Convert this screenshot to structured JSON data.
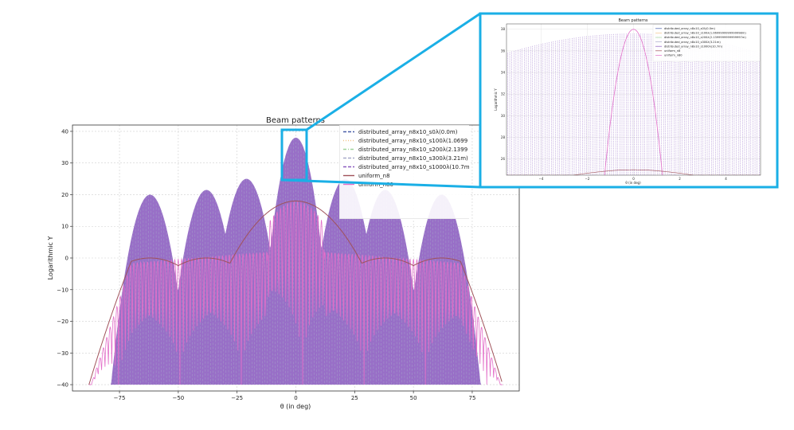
{
  "chart_data": [
    {
      "type": "line",
      "title": "Beam patterns",
      "xlabel": "θ (in deg)",
      "ylabel": "Logarithmic Y",
      "xlim": [
        -95,
        95
      ],
      "ylim": [
        -42,
        42
      ],
      "xticks": [
        -75,
        -50,
        -25,
        0,
        25,
        50,
        75
      ],
      "yticks": [
        -40,
        -30,
        -20,
        -10,
        0,
        10,
        20,
        30,
        40
      ],
      "grid": true,
      "legend_position": "top-right",
      "envelope_peaks": [
        {
          "x": -62,
          "y": 20
        },
        {
          "x": -38,
          "y": 21.5
        },
        {
          "x": -21,
          "y": 25
        },
        {
          "x": 0,
          "y": 38
        },
        {
          "x": 21,
          "y": 25
        },
        {
          "x": 38,
          "y": 21.5
        },
        {
          "x": 62,
          "y": 20
        }
      ],
      "uniform_n8_peaks": [
        {
          "x": 0,
          "y": 18
        },
        {
          "x": -17,
          "y": 5
        },
        {
          "x": 17,
          "y": 5
        },
        {
          "x": -38,
          "y": 0
        },
        {
          "x": 38,
          "y": 0
        },
        {
          "x": -62,
          "y": 0
        },
        {
          "x": 62,
          "y": 0
        }
      ],
      "series": [
        {
          "name": "distributed_array_n8x10_s0λ(0.0m)",
          "color": "#4a5fa8",
          "dash": "dashed"
        },
        {
          "name": "distributed_array_n8x10_s100λ(1.0699",
          "color": "#f2c48a",
          "dash": "dotted"
        },
        {
          "name": "distributed_array_n8x10_s200λ(2.1399",
          "color": "#9fd39a",
          "dash": "dashdot"
        },
        {
          "name": "distributed_array_n8x10_s300λ(3.21m)",
          "color": "#a7a9c9",
          "dash": "dashed"
        },
        {
          "name": "distributed_array_n8x10_s1000λ(10.7m",
          "color": "#8a5bbf",
          "dash": "dashed"
        },
        {
          "name": "uniform_n8",
          "color": "#a0525a",
          "dash": "solid"
        },
        {
          "name": "uniform_n80",
          "color": "#e36fc9",
          "dash": "solid"
        }
      ]
    },
    {
      "type": "line",
      "title": "Beam patterns",
      "xlabel": "θ (in deg)",
      "ylabel": "Logarithmic Y",
      "xlim": [
        -5.5,
        5.5
      ],
      "ylim": [
        24.5,
        38.5
      ],
      "xticks": [
        -4,
        -2,
        0,
        2,
        4
      ],
      "yticks": [
        26,
        28,
        30,
        32,
        34,
        36,
        38
      ],
      "grid": true,
      "legend_position": "top-right",
      "series": [
        {
          "name": "distributed_array_n8x10_s0λ(0.0m)",
          "color": "#4a5fa8"
        },
        {
          "name": "distributed_array_n8x10_s100λ(1.0699999999999998m)",
          "color": "#f2c48a"
        },
        {
          "name": "distributed_array_n8x10_s200λ(2.1399999999999997m)",
          "color": "#9fd39a"
        },
        {
          "name": "distributed_array_n8x10_s300λ(3.21m)",
          "color": "#a7a9c9"
        },
        {
          "name": "distributed_array_n8x10_s1000λ(10.7m)",
          "color": "#8a5bbf"
        },
        {
          "name": "uniform_n8",
          "color": "#a0525a"
        },
        {
          "name": "uniform_n80",
          "color": "#e36fc9"
        }
      ]
    }
  ],
  "callout_color": "#1aafe6"
}
